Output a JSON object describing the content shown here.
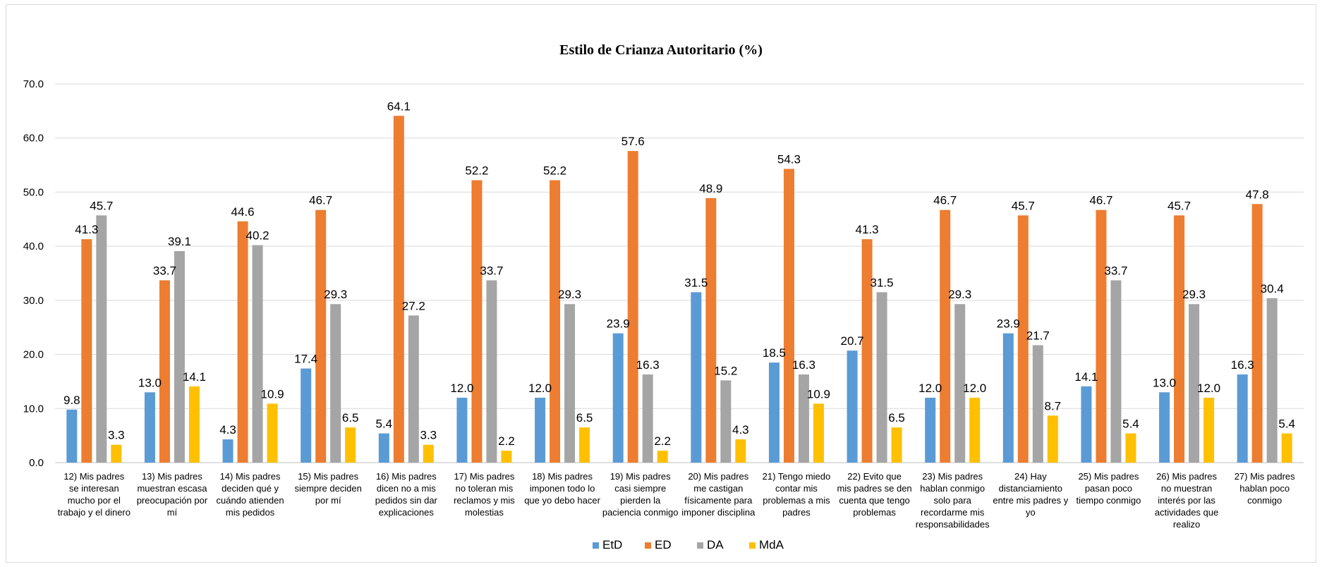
{
  "chart_data": {
    "type": "bar",
    "title": "Estilo de Crianza Autoritario (%)",
    "xlabel": "",
    "ylabel": "",
    "ylim": [
      0,
      70
    ],
    "yticks": [
      "0.0",
      "10.0",
      "20.0",
      "30.0",
      "40.0",
      "50.0",
      "60.0",
      "70.0"
    ],
    "grid": true,
    "legend_position": "bottom",
    "categories": [
      [
        "12)      Mis padres",
        "se interesan",
        "mucho por el",
        "trabajo y el dinero"
      ],
      [
        "13)      Mis padres",
        "muestran escasa",
        "preocupación por",
        "mí"
      ],
      [
        "14)      Mis padres",
        "deciden qué y",
        "cuándo atienden",
        "mis pedidos"
      ],
      [
        "15)      Mis padres",
        "siempre deciden",
        "por mí"
      ],
      [
        "16)      Mis padres",
        "dicen no a mis",
        "pedidos sin dar",
        "explicaciones"
      ],
      [
        "17)      Mis padres",
        "no toleran mis",
        "reclamos y mis",
        "molestias"
      ],
      [
        "18)      Mis padres",
        "imponen todo lo",
        "que yo debo hacer"
      ],
      [
        "19)      Mis padres",
        "casi siempre",
        "pierden la",
        "paciencia conmigo"
      ],
      [
        "20)      Mis padres",
        "me castigan",
        "físicamente para",
        "imponer disciplina"
      ],
      [
        "21)      Tengo miedo",
        "contar mis",
        "problemas a mis",
        "padres"
      ],
      [
        "22)      Evito que",
        "mis padres se den",
        "cuenta que tengo",
        "problemas"
      ],
      [
        "23)      Mis padres",
        "hablan conmigo",
        "solo para",
        "recordarme mis",
        "responsabilidades"
      ],
      [
        "24)      Hay",
        "distanciamiento",
        "entre mis padres y",
        "yo"
      ],
      [
        "25)      Mis padres",
        "pasan poco",
        "tiempo conmigo"
      ],
      [
        "26)      Mis padres",
        "no muestran",
        "interés por las",
        "actividades que",
        "realizo"
      ],
      [
        "27)      Mis padres",
        "hablan poco",
        "conmigo"
      ]
    ],
    "series": [
      {
        "name": "EtD",
        "color": "#5b9bd5",
        "values": [
          9.8,
          13.0,
          4.3,
          17.4,
          5.4,
          12.0,
          12.0,
          23.9,
          31.5,
          18.5,
          20.7,
          12.0,
          23.9,
          14.1,
          13.0,
          16.3
        ],
        "labels": [
          "9.8",
          "13.0",
          "4.3",
          "17.4",
          "5.4",
          "12.0",
          "12.0",
          "23.9",
          "31.5",
          "18.5",
          "20.7",
          "12.0",
          "23.9",
          "14.1",
          "13.0",
          "16.3"
        ]
      },
      {
        "name": "ED",
        "color": "#ed7d31",
        "values": [
          41.3,
          33.7,
          44.6,
          46.7,
          64.1,
          52.2,
          52.2,
          57.6,
          48.9,
          54.3,
          41.3,
          46.7,
          45.7,
          46.7,
          45.7,
          47.8
        ],
        "labels": [
          "41.3",
          "33.7",
          "44.6",
          "46.7",
          "64.1",
          "52.2",
          "52.2",
          "57.6",
          "48.9",
          "54.3",
          "41.3",
          "46.7",
          "45.7",
          "46.7",
          "45.7",
          "47.8"
        ]
      },
      {
        "name": "DA",
        "color": "#a5a5a5",
        "values": [
          45.7,
          39.1,
          40.2,
          29.3,
          27.2,
          33.7,
          29.3,
          16.3,
          15.2,
          16.3,
          31.5,
          29.3,
          21.7,
          33.7,
          29.3,
          30.4
        ],
        "labels": [
          "45.7",
          "39.1",
          "40.2",
          "29.3",
          "27.2",
          "33.7",
          "29.3",
          "16.3",
          "15.2",
          "16.3",
          "31.5",
          "29.3",
          "21.7",
          "33.7",
          "29.3",
          "30.4"
        ]
      },
      {
        "name": "MdA",
        "color": "#ffc000",
        "values": [
          3.3,
          14.1,
          10.9,
          6.5,
          3.3,
          2.2,
          6.5,
          2.2,
          4.3,
          10.9,
          6.5,
          12.0,
          8.7,
          5.4,
          12.0,
          5.4
        ],
        "labels": [
          "3.3",
          "14.1",
          "10.9",
          "6.5",
          "3.3",
          "2.2",
          "6.5",
          "2.2",
          "4.3",
          "10.9",
          "6.5",
          "12.0",
          "8.7",
          "5.4",
          "12.0",
          "5.4"
        ]
      }
    ]
  }
}
